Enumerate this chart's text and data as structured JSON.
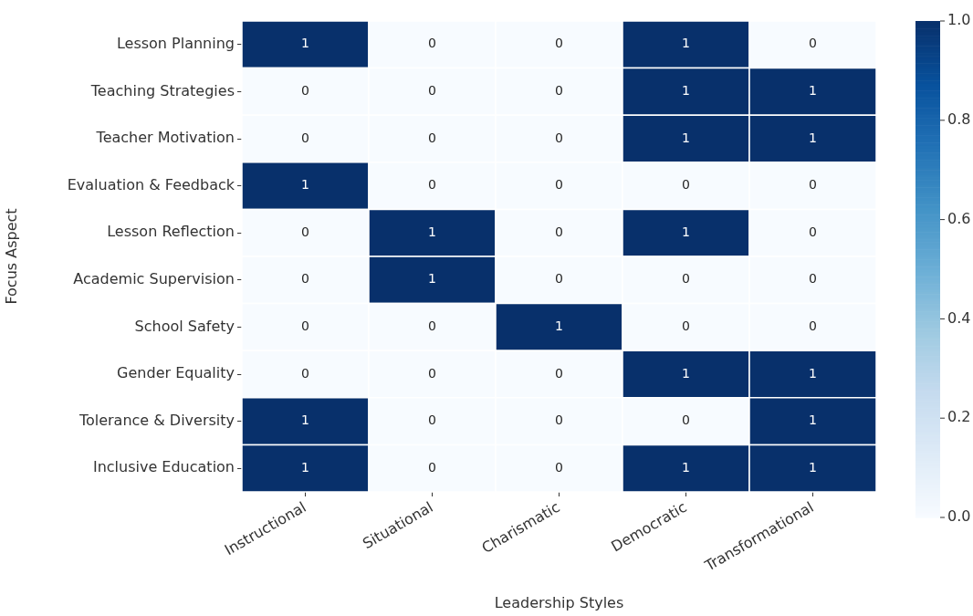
{
  "chart_data": {
    "type": "heatmap",
    "xlabel": "Leadership Styles",
    "ylabel": "Focus Aspect",
    "categories": [
      "Instructional",
      "Situational",
      "Charismatic",
      "Democratic",
      "Transformational"
    ],
    "y_categories": [
      "Lesson Planning",
      "Teaching Strategies",
      "Teacher Motivation",
      "Evaluation & Feedback",
      "Lesson Reflection",
      "Academic Supervision",
      "School Safety",
      "Gender Equality",
      "Tolerance & Diversity",
      "Inclusive Education"
    ],
    "cells": [
      [
        1,
        0,
        0,
        1,
        0
      ],
      [
        0,
        0,
        0,
        1,
        1
      ],
      [
        0,
        0,
        0,
        1,
        1
      ],
      [
        1,
        0,
        0,
        0,
        0
      ],
      [
        0,
        1,
        0,
        1,
        0
      ],
      [
        0,
        1,
        0,
        0,
        0
      ],
      [
        0,
        0,
        1,
        0,
        0
      ],
      [
        0,
        0,
        0,
        1,
        1
      ],
      [
        1,
        0,
        0,
        0,
        1
      ],
      [
        1,
        0,
        0,
        1,
        1
      ]
    ],
    "data_labels": true,
    "clim": [
      0,
      1
    ],
    "cticks": [
      {
        "value": 0,
        "label": "0.0"
      },
      0.2,
      0.4,
      0.6,
      0.8,
      {
        "value": 1,
        "label": "1.0"
      }
    ]
  }
}
